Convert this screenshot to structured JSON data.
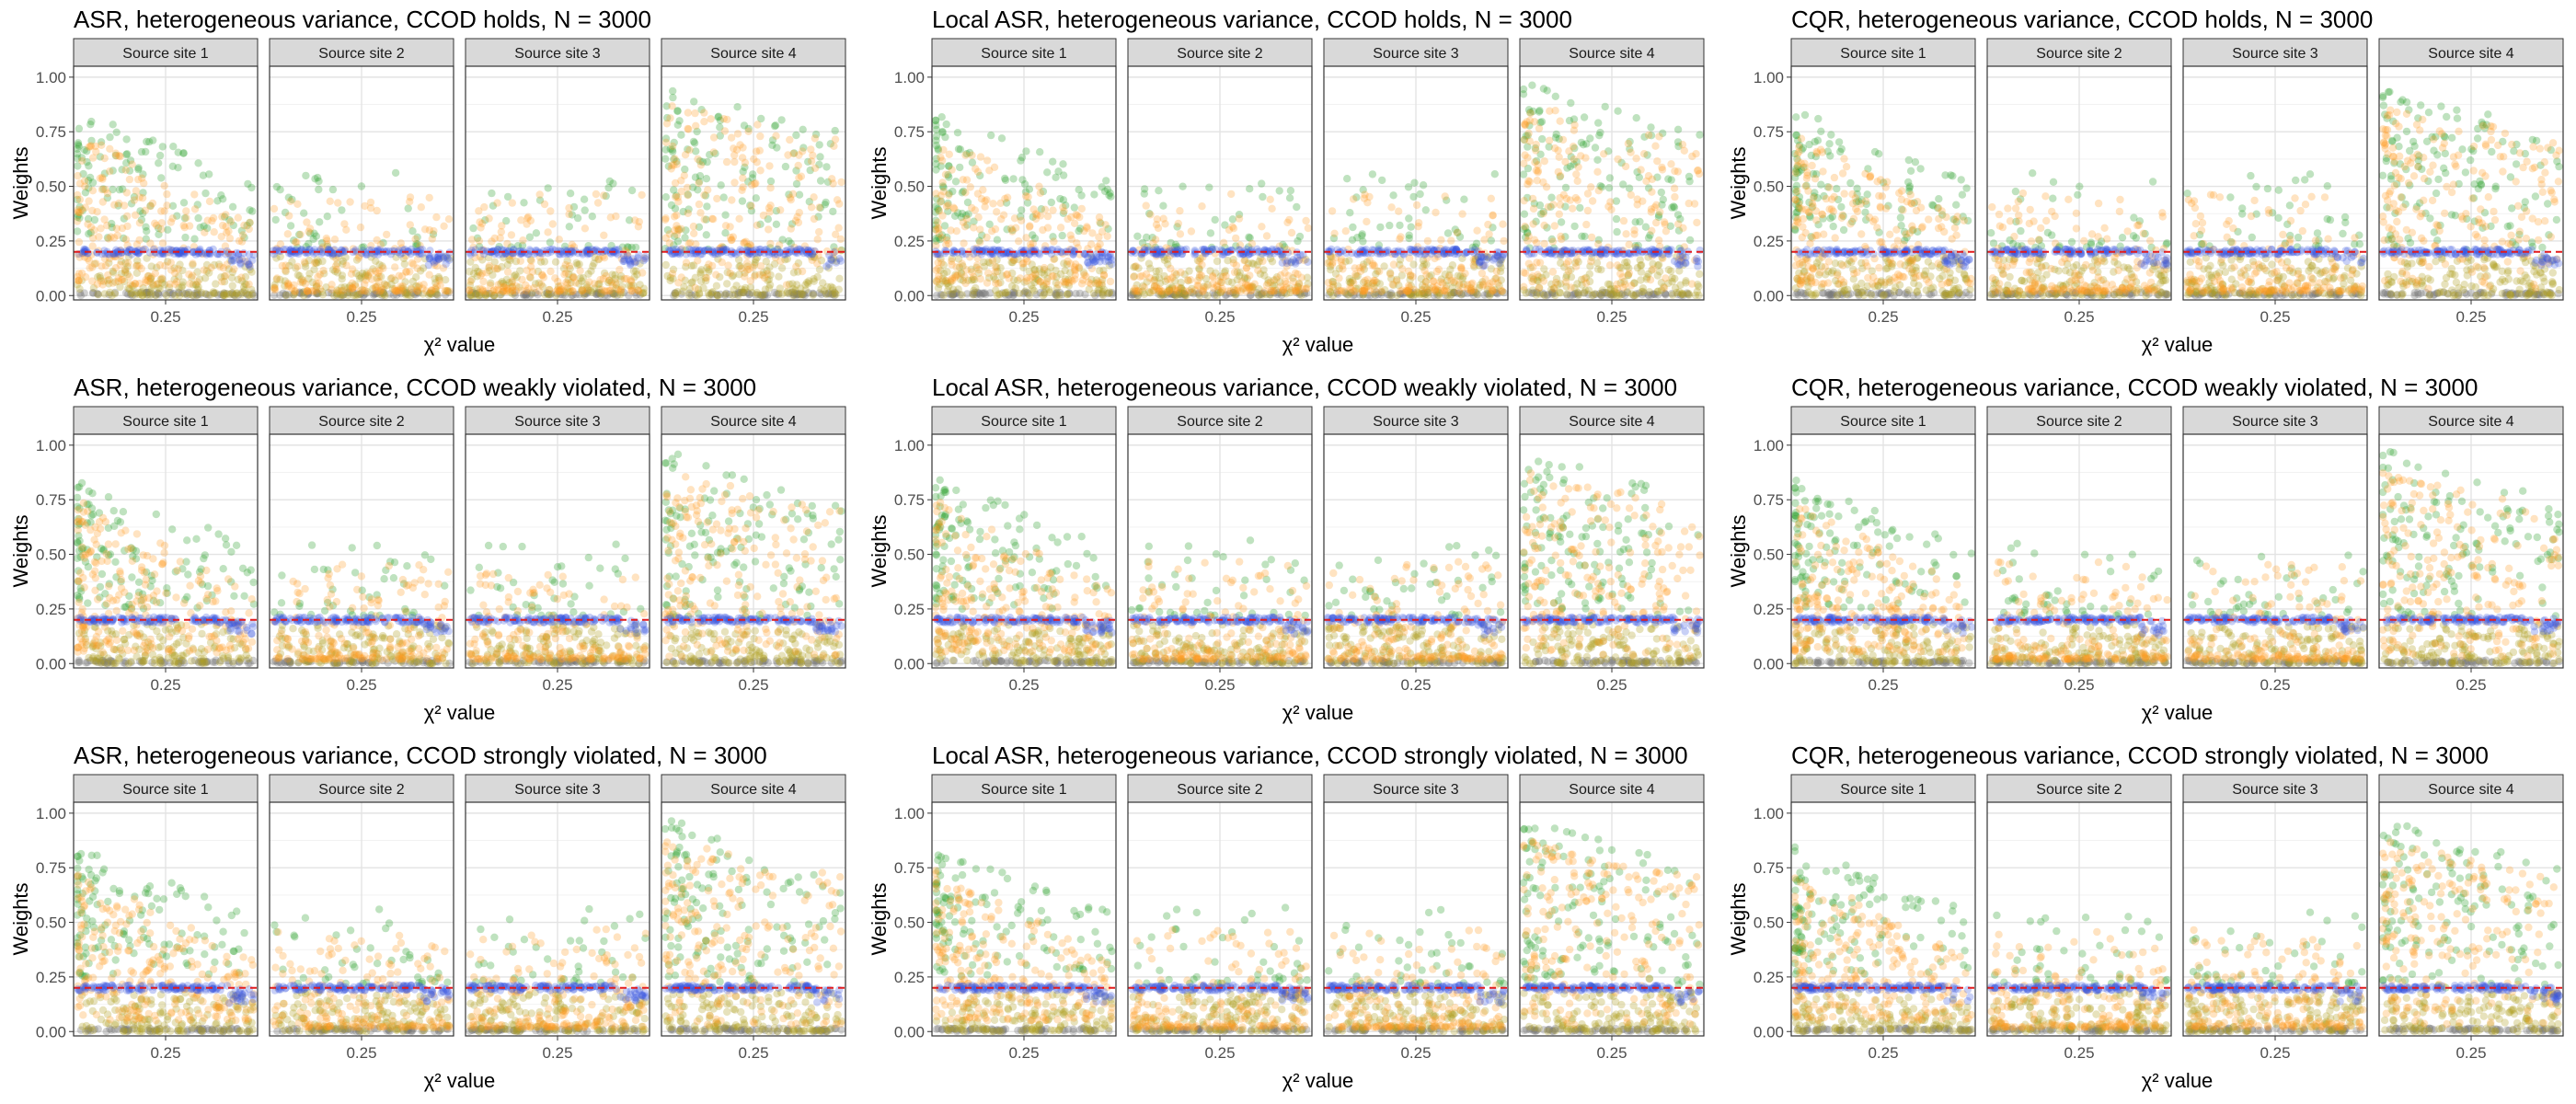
{
  "figure": {
    "facet_labels": [
      "Source site 1",
      "Source site 2",
      "Source site 3",
      "Source site 4"
    ]
  },
  "chart_data": [
    {
      "type": "scatter",
      "title": "ASR, heterogeneous variance, CCOD holds, N = 3000",
      "xlabel": "χ² value",
      "ylabel": "Weights",
      "xticks": [
        0.25
      ],
      "yticks": [
        0.0,
        0.25,
        0.5,
        0.75,
        1.0
      ],
      "ylim": [
        -0.02,
        1.05
      ],
      "reference_line": 0.2,
      "facets": [
        "Source site 1",
        "Source site 2",
        "Source site 3",
        "Source site 4"
      ],
      "grid": true,
      "point_colors": {
        "green": "#2ca02c",
        "orange": "#ff9a1f",
        "blue": "#3a57e0",
        "olive": "#b0a020",
        "gray": "#777777"
      }
    },
    {
      "type": "scatter",
      "title": "Local ASR, heterogeneous variance, CCOD holds, N = 3000",
      "xlabel": "χ² value",
      "ylabel": "Weights",
      "xticks": [
        0.25
      ],
      "yticks": [
        0.0,
        0.25,
        0.5,
        0.75,
        1.0
      ],
      "ylim": [
        -0.02,
        1.05
      ],
      "reference_line": 0.2,
      "facets": [
        "Source site 1",
        "Source site 2",
        "Source site 3",
        "Source site 4"
      ],
      "grid": true,
      "point_colors": {
        "green": "#2ca02c",
        "orange": "#ff9a1f",
        "blue": "#3a57e0",
        "olive": "#b0a020",
        "gray": "#777777"
      }
    },
    {
      "type": "scatter",
      "title": "CQR, heterogeneous variance, CCOD holds, N = 3000",
      "xlabel": "χ² value",
      "ylabel": "Weights",
      "xticks": [
        0.25
      ],
      "yticks": [
        0.0,
        0.25,
        0.5,
        0.75,
        1.0
      ],
      "ylim": [
        -0.02,
        1.05
      ],
      "reference_line": 0.2,
      "facets": [
        "Source site 1",
        "Source site 2",
        "Source site 3",
        "Source site 4"
      ],
      "grid": true,
      "point_colors": {
        "green": "#2ca02c",
        "orange": "#ff9a1f",
        "blue": "#3a57e0",
        "olive": "#b0a020",
        "gray": "#777777"
      }
    },
    {
      "type": "scatter",
      "title": "ASR, heterogeneous variance, CCOD weakly violated, N = 3000",
      "xlabel": "χ² value",
      "ylabel": "Weights",
      "xticks": [
        0.25
      ],
      "yticks": [
        0.0,
        0.25,
        0.5,
        0.75,
        1.0
      ],
      "ylim": [
        -0.02,
        1.05
      ],
      "reference_line": 0.2,
      "facets": [
        "Source site 1",
        "Source site 2",
        "Source site 3",
        "Source site 4"
      ],
      "grid": true,
      "point_colors": {
        "green": "#2ca02c",
        "orange": "#ff9a1f",
        "blue": "#3a57e0",
        "olive": "#b0a020",
        "gray": "#777777"
      }
    },
    {
      "type": "scatter",
      "title": "Local ASR, heterogeneous variance, CCOD weakly violated, N = 3000",
      "xlabel": "χ² value",
      "ylabel": "Weights",
      "xticks": [
        0.25
      ],
      "yticks": [
        0.0,
        0.25,
        0.5,
        0.75,
        1.0
      ],
      "ylim": [
        -0.02,
        1.05
      ],
      "reference_line": 0.2,
      "facets": [
        "Source site 1",
        "Source site 2",
        "Source site 3",
        "Source site 4"
      ],
      "grid": true,
      "point_colors": {
        "green": "#2ca02c",
        "orange": "#ff9a1f",
        "blue": "#3a57e0",
        "olive": "#b0a020",
        "gray": "#777777"
      }
    },
    {
      "type": "scatter",
      "title": "CQR, heterogeneous variance, CCOD weakly violated, N = 3000",
      "xlabel": "χ² value",
      "ylabel": "Weights",
      "xticks": [
        0.25
      ],
      "yticks": [
        0.0,
        0.25,
        0.5,
        0.75,
        1.0
      ],
      "ylim": [
        -0.02,
        1.05
      ],
      "reference_line": 0.2,
      "facets": [
        "Source site 1",
        "Source site 2",
        "Source site 3",
        "Source site 4"
      ],
      "grid": true,
      "point_colors": {
        "green": "#2ca02c",
        "orange": "#ff9a1f",
        "blue": "#3a57e0",
        "olive": "#b0a020",
        "gray": "#777777"
      }
    },
    {
      "type": "scatter",
      "title": "ASR, heterogeneous variance, CCOD strongly violated, N = 3000",
      "xlabel": "χ² value",
      "ylabel": "Weights",
      "xticks": [
        0.25
      ],
      "yticks": [
        0.0,
        0.25,
        0.5,
        0.75,
        1.0
      ],
      "ylim": [
        -0.02,
        1.05
      ],
      "reference_line": 0.2,
      "facets": [
        "Source site 1",
        "Source site 2",
        "Source site 3",
        "Source site 4"
      ],
      "grid": true,
      "point_colors": {
        "green": "#2ca02c",
        "orange": "#ff9a1f",
        "blue": "#3a57e0",
        "olive": "#b0a020",
        "gray": "#777777"
      }
    },
    {
      "type": "scatter",
      "title": "Local ASR, heterogeneous variance, CCOD strongly violated, N = 3000",
      "xlabel": "χ² value",
      "ylabel": "Weights",
      "xticks": [
        0.25
      ],
      "yticks": [
        0.0,
        0.25,
        0.5,
        0.75,
        1.0
      ],
      "ylim": [
        -0.02,
        1.05
      ],
      "reference_line": 0.2,
      "facets": [
        "Source site 1",
        "Source site 2",
        "Source site 3",
        "Source site 4"
      ],
      "grid": true,
      "point_colors": {
        "green": "#2ca02c",
        "orange": "#ff9a1f",
        "blue": "#3a57e0",
        "olive": "#b0a020",
        "gray": "#777777"
      }
    },
    {
      "type": "scatter",
      "title": "CQR, heterogeneous variance, CCOD strongly violated, N = 3000",
      "xlabel": "χ² value",
      "ylabel": "Weights",
      "xticks": [
        0.25
      ],
      "yticks": [
        0.0,
        0.25,
        0.5,
        0.75,
        1.0
      ],
      "ylim": [
        -0.02,
        1.05
      ],
      "reference_line": 0.2,
      "facets": [
        "Source site 1",
        "Source site 2",
        "Source site 3",
        "Source site 4"
      ],
      "grid": true,
      "point_colors": {
        "green": "#2ca02c",
        "orange": "#ff9a1f",
        "blue": "#3a57e0",
        "olive": "#b0a020",
        "gray": "#777777"
      }
    }
  ]
}
